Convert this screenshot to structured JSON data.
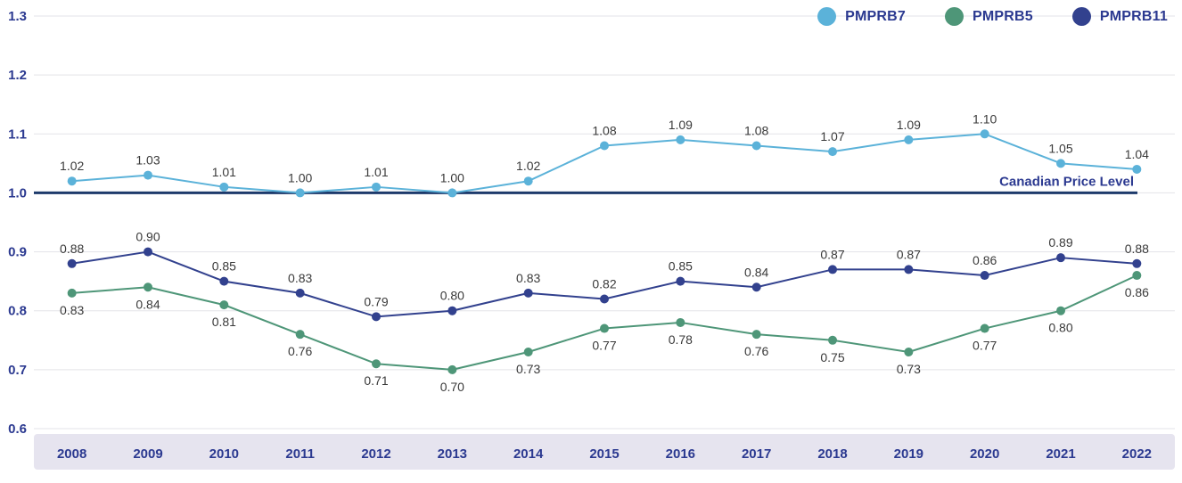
{
  "chart_data": {
    "type": "line",
    "categories": [
      "2008",
      "2009",
      "2010",
      "2011",
      "2012",
      "2013",
      "2014",
      "2015",
      "2016",
      "2017",
      "2018",
      "2019",
      "2020",
      "2021",
      "2022"
    ],
    "series": [
      {
        "name": "PMPRB7",
        "color": "#5bb2d9",
        "label_position": "above",
        "values": [
          1.02,
          1.03,
          1.01,
          1.0,
          1.01,
          1.0,
          1.02,
          1.08,
          1.09,
          1.08,
          1.07,
          1.09,
          1.1,
          1.05,
          1.04
        ]
      },
      {
        "name": "PMPRB5",
        "color": "#4e9678",
        "label_position": "below",
        "values": [
          0.83,
          0.84,
          0.81,
          0.76,
          0.71,
          0.7,
          0.73,
          0.77,
          0.78,
          0.76,
          0.75,
          0.73,
          0.77,
          0.8,
          0.86
        ]
      },
      {
        "name": "PMPRB11",
        "color": "#32418e",
        "label_position": "above",
        "values": [
          0.88,
          0.9,
          0.85,
          0.83,
          0.79,
          0.8,
          0.83,
          0.82,
          0.85,
          0.84,
          0.87,
          0.87,
          0.86,
          0.89,
          0.88
        ]
      }
    ],
    "ylim": [
      0.6,
      1.3
    ],
    "yticks": [
      0.6,
      0.7,
      0.8,
      0.9,
      1.0,
      1.1,
      1.2,
      1.3
    ],
    "grid": true,
    "legend_position": "top-right",
    "reference_line": {
      "value": 1.0,
      "label": "Canadian Price Level"
    },
    "title": "",
    "xlabel": "",
    "ylabel": ""
  },
  "colors": {
    "background": "#ffffff",
    "grid": "#e3e3e8",
    "axis_text": "#2b3990",
    "band": "#e6e4ef",
    "value_label": "#3a3a3a",
    "reference_line": "#1d3a6b"
  }
}
